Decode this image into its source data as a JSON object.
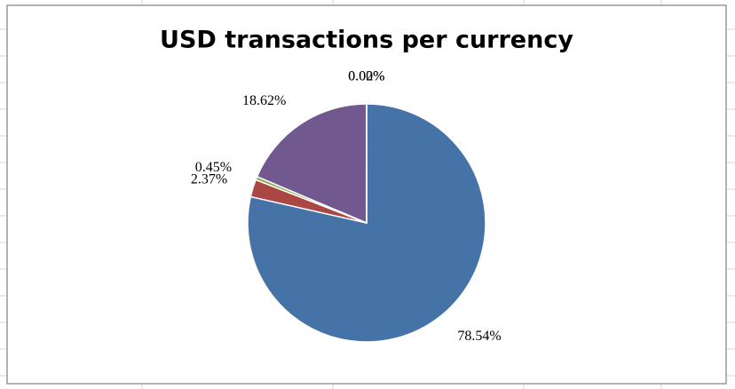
{
  "chart_data": {
    "type": "pie",
    "title": "USD transactions per currency",
    "values": [
      78.54,
      2.37,
      0.45,
      18.62,
      0.0,
      0.02
    ],
    "value_labels": [
      "78.54%",
      "2.37%",
      "0.45%",
      "18.62%",
      "0.00%",
      "0.02%"
    ],
    "colors": [
      "#4572a7",
      "#aa4643",
      "#89a54e",
      "#71588f",
      "#4198af",
      "#db843d"
    ]
  }
}
